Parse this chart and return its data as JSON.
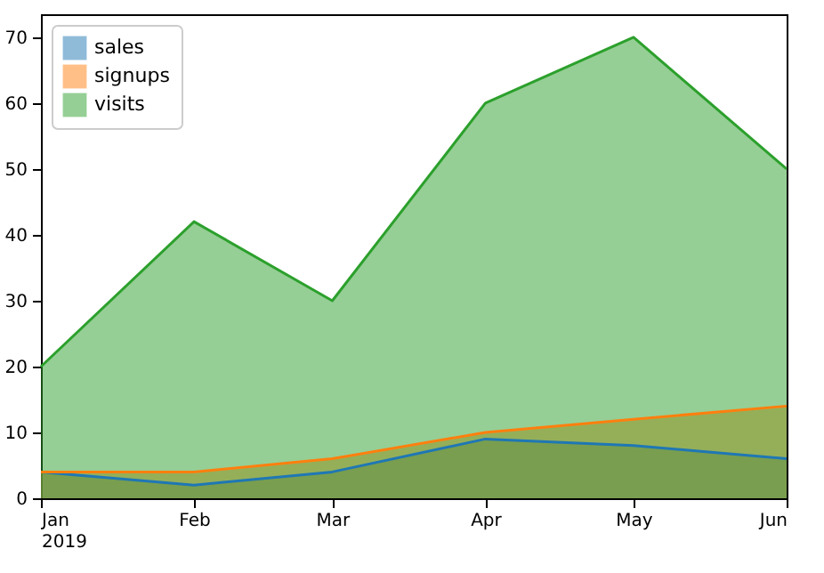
{
  "chart_data": {
    "type": "area",
    "x": [
      "2019-01",
      "2019-02",
      "2019-03",
      "2019-04",
      "2019-05",
      "2019-06"
    ],
    "series": [
      {
        "name": "sales",
        "color": "#1f77b4",
        "values": [
          4,
          2,
          4,
          9,
          8,
          6
        ]
      },
      {
        "name": "signups",
        "color": "#ff7f0e",
        "values": [
          4,
          4,
          6,
          10,
          12,
          14
        ]
      },
      {
        "name": "visits",
        "color": "#2ca02c",
        "values": [
          20,
          42,
          30,
          60,
          70,
          50
        ]
      }
    ],
    "xlim": [
      "2019-01",
      "2019-06"
    ],
    "xticks": [
      {
        "value": "2019-01",
        "label": "Jan\n2019"
      },
      {
        "value": "2019-02",
        "label": "Feb"
      },
      {
        "value": "2019-03",
        "label": "Mar"
      },
      {
        "value": "2019-04",
        "label": "Apr"
      },
      {
        "value": "2019-05",
        "label": "May"
      },
      {
        "value": "2019-06",
        "label": "Jun"
      }
    ],
    "ylim": [
      0,
      73.5
    ],
    "yticks": [
      0,
      10,
      20,
      30,
      40,
      50,
      60,
      70
    ],
    "legend": "top left",
    "grid": false
  }
}
